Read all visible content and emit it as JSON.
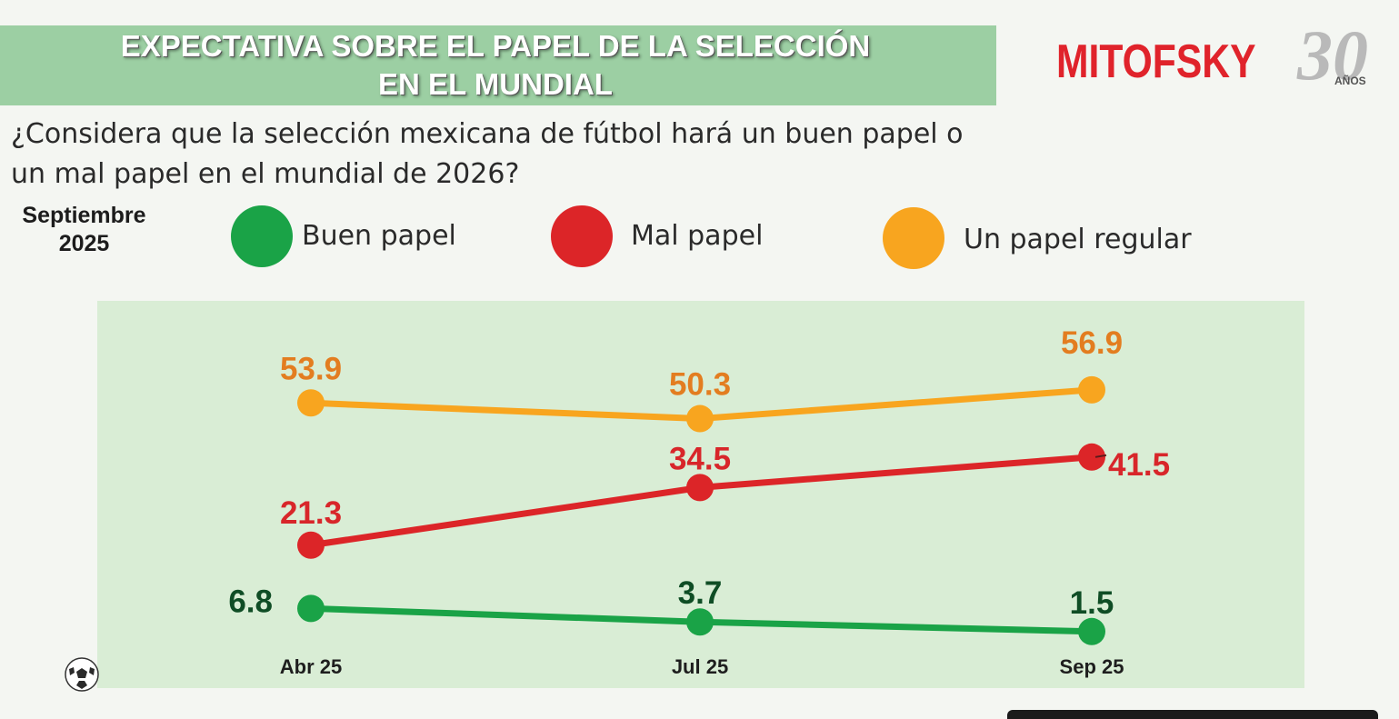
{
  "header": {
    "title_line1": "EXPECTATIVA SOBRE EL PAPEL DE LA SELECCIÓN",
    "title_line2": "EN EL MUNDIAL",
    "banner_color": "#9ccfa3"
  },
  "logo": {
    "brand": "MITOFSKY",
    "number": "30",
    "suffix": "AÑOS",
    "brand_color": "#e0232b"
  },
  "question": "¿Considera que la selección mexicana de fútbol hará un buen papel o un mal papel en el mundial de 2026?",
  "period": {
    "line1": "Septiembre",
    "line2": "2025"
  },
  "legend": [
    {
      "label": "Buen papel",
      "color": "#1aa347"
    },
    {
      "label": "Mal papel",
      "color": "#dc2528"
    },
    {
      "label": "Un papel regular",
      "color": "#f8a51f"
    }
  ],
  "chart_data": {
    "type": "line",
    "x": [
      "Abr 25",
      "Jul 25",
      "Sep 25"
    ],
    "series": [
      {
        "name": "Un papel regular",
        "values": [
          53.9,
          50.3,
          56.9
        ],
        "color": "#f8a51f",
        "label_color": "#e37d20"
      },
      {
        "name": "Mal papel",
        "values": [
          21.3,
          34.5,
          41.5
        ],
        "color": "#dc2528",
        "label_color": "#d8262a"
      },
      {
        "name": "Buen papel",
        "values": [
          6.8,
          3.7,
          1.5
        ],
        "color": "#1aa347",
        "label_color": "#0f4d25"
      }
    ],
    "grid": false,
    "legend_placement": "top"
  }
}
